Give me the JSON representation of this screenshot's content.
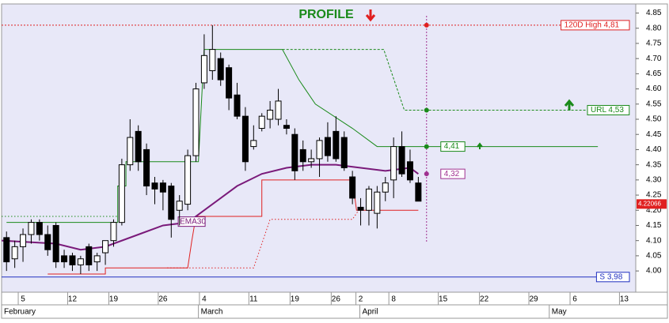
{
  "chart_data": {
    "type": "candlestick",
    "title": "PROFILE",
    "xlim": [
      -2.6,
      74.4
    ],
    "ylim": [
      3.93,
      4.88
    ],
    "yticks": [
      {
        "value": 4.0,
        "label": "4.00"
      },
      {
        "value": 4.05,
        "label": "4.05"
      },
      {
        "value": 4.1,
        "label": "4.10"
      },
      {
        "value": 4.15,
        "label": "4.15"
      },
      {
        "value": 4.2,
        "label": "4.20"
      },
      {
        "value": 4.25,
        "label": "4.25"
      },
      {
        "value": 4.3,
        "label": "4.30"
      },
      {
        "value": 4.35,
        "label": "4.35"
      },
      {
        "value": 4.4,
        "label": "4.40"
      },
      {
        "value": 4.45,
        "label": "4.45"
      },
      {
        "value": 4.5,
        "label": "4.50"
      },
      {
        "value": 4.55,
        "label": "4.55"
      },
      {
        "value": 4.6,
        "label": "4.60"
      },
      {
        "value": 4.65,
        "label": "4.65"
      },
      {
        "value": 4.7,
        "label": "4.70"
      },
      {
        "value": 4.75,
        "label": "4.75"
      },
      {
        "value": 4.8,
        "label": "4.80"
      },
      {
        "value": 4.85,
        "label": "4.85"
      }
    ],
    "xticks": [
      {
        "value": 0,
        "label": "5"
      },
      {
        "value": 6,
        "label": "12"
      },
      {
        "value": 11,
        "label": "19"
      },
      {
        "value": 17,
        "label": "26"
      },
      {
        "value": 22,
        "label": "4"
      },
      {
        "value": 28,
        "label": "11"
      },
      {
        "value": 33,
        "label": "19"
      },
      {
        "value": 38,
        "label": "26"
      },
      {
        "value": 41,
        "label": "2"
      },
      {
        "value": 45,
        "label": "8"
      },
      {
        "value": 51,
        "label": "15"
      },
      {
        "value": 56,
        "label": "22"
      },
      {
        "value": 62,
        "label": "29"
      },
      {
        "value": 67,
        "label": "6"
      },
      {
        "value": 73,
        "label": "13"
      }
    ],
    "month_ticks": [
      {
        "value": -2.6,
        "label": "February"
      },
      {
        "value": 21.3,
        "label": "March"
      },
      {
        "value": 40.9,
        "label": "April"
      },
      {
        "value": 63.9,
        "label": "May"
      }
    ],
    "candles": {
      "x": [
        -2,
        -1,
        0,
        1,
        2,
        3,
        4,
        5,
        6,
        7,
        8,
        9,
        10,
        11,
        12,
        13,
        14,
        15,
        16,
        17,
        18,
        19,
        20,
        21,
        22,
        23,
        24,
        25,
        26,
        27,
        28,
        29,
        30,
        31,
        32,
        33,
        34,
        35,
        36,
        37,
        38,
        39,
        40,
        41,
        42,
        43,
        44,
        45,
        46,
        47,
        48
      ],
      "open": [
        4.11,
        4.04,
        4.08,
        4.12,
        4.16,
        4.12,
        4.15,
        4.05,
        4.05,
        4.02,
        4.08,
        4.03,
        4.06,
        4.1,
        4.16,
        4.35,
        4.46,
        4.4,
        4.29,
        4.29,
        4.28,
        4.2,
        4.22,
        4.38,
        4.62,
        4.66,
        4.7,
        4.67,
        4.58,
        4.51,
        4.41,
        4.47,
        4.5,
        4.5,
        4.48,
        4.45,
        4.4,
        4.36,
        4.37,
        4.44,
        4.46,
        4.44,
        4.31,
        4.21,
        4.2,
        4.19,
        4.26,
        4.3,
        4.41,
        4.36,
        4.29
      ],
      "high": [
        4.13,
        4.1,
        4.14,
        4.17,
        4.17,
        4.15,
        4.16,
        4.07,
        4.06,
        4.05,
        4.09,
        4.06,
        4.1,
        4.17,
        4.37,
        4.5,
        4.48,
        4.42,
        4.31,
        4.3,
        4.29,
        4.25,
        4.4,
        4.62,
        4.78,
        4.81,
        4.72,
        4.68,
        4.62,
        4.54,
        4.48,
        4.52,
        4.56,
        4.6,
        4.5,
        4.47,
        4.43,
        4.4,
        4.44,
        4.49,
        4.51,
        4.46,
        4.33,
        4.24,
        4.28,
        4.28,
        4.31,
        4.44,
        4.46,
        4.4,
        4.31
      ],
      "low": [
        4.0,
        4.01,
        4.03,
        4.09,
        4.1,
        4.05,
        4.01,
        4.01,
        4.0,
        3.99,
        4.0,
        4.0,
        4.02,
        4.08,
        4.15,
        4.33,
        4.33,
        4.25,
        4.22,
        4.2,
        4.11,
        4.15,
        4.2,
        4.36,
        4.6,
        4.63,
        4.61,
        4.53,
        4.5,
        4.33,
        4.4,
        4.46,
        4.47,
        4.48,
        4.45,
        4.3,
        4.33,
        4.34,
        4.31,
        4.36,
        4.36,
        4.33,
        4.22,
        4.15,
        4.15,
        4.14,
        4.23,
        4.24,
        4.31,
        4.29,
        4.23
      ],
      "close": [
        4.03,
        4.08,
        4.12,
        4.16,
        4.12,
        4.07,
        4.03,
        4.03,
        4.02,
        4.04,
        4.02,
        4.05,
        4.1,
        4.16,
        4.35,
        4.44,
        4.36,
        4.28,
        4.27,
        4.26,
        4.17,
        4.23,
        4.38,
        4.6,
        4.71,
        4.73,
        4.63,
        4.57,
        4.51,
        4.36,
        4.43,
        4.51,
        4.53,
        4.56,
        4.47,
        4.33,
        4.36,
        4.37,
        4.43,
        4.38,
        4.37,
        4.34,
        4.24,
        4.2,
        4.27,
        4.26,
        4.29,
        4.41,
        4.32,
        4.3,
        4.23
      ]
    },
    "series": [
      {
        "color": "#1a8a1a",
        "style": "solid",
        "x": [
          -2,
          11.5,
          11.5,
          12.5,
          12.5,
          21.3,
          22,
          22,
          31.5,
          33.5,
          35.5,
          40,
          43,
          45,
          48,
          69.8
        ],
        "values": [
          4.16,
          4.16,
          4.28,
          4.28,
          4.36,
          4.36,
          4.73,
          4.73,
          4.73,
          4.63,
          4.55,
          4.47,
          4.41,
          4.41,
          4.41,
          4.41
        ]
      },
      {
        "color": "#1a8a1a",
        "style": "dotted",
        "x": [
          -2.6,
          11.5
        ],
        "values": [
          4.18,
          4.18
        ]
      },
      {
        "color": "#1a8a1a",
        "style": "dashed",
        "x": [
          31.5,
          43.8,
          46.3,
          69.8
        ],
        "values": [
          4.73,
          4.73,
          4.53,
          4.53
        ]
      },
      {
        "color": "#e02020",
        "style": "solid",
        "x": [
          3,
          10,
          10,
          20,
          20.5,
          21,
          29,
          29,
          40,
          40.5,
          48
        ],
        "values": [
          3.99,
          3.99,
          4.01,
          4.01,
          4.1,
          4.18,
          4.18,
          4.3,
          4.3,
          4.2,
          4.2
        ]
      },
      {
        "color": "#e02020",
        "style": "dotted",
        "x": [
          17.5,
          28,
          30,
          40,
          41
        ],
        "values": [
          4.01,
          4.01,
          4.17,
          4.17,
          4.21
        ]
      },
      {
        "name": "EMA30",
        "color": "#7a1a7a",
        "style": "solid",
        "x": [
          -2.6,
          4,
          7,
          10,
          14,
          17,
          20,
          23,
          26,
          29,
          32,
          35,
          38,
          41,
          44,
          47,
          48
        ],
        "values": [
          4.1,
          4.09,
          4.07,
          4.08,
          4.12,
          4.15,
          4.16,
          4.22,
          4.28,
          4.32,
          4.34,
          4.35,
          4.35,
          4.34,
          4.33,
          4.34,
          4.32
        ]
      }
    ],
    "levels": [
      {
        "label": "120D High 4,81",
        "value": 4.81,
        "color": "#e02020"
      },
      {
        "label": "S 3,98",
        "value": 3.98,
        "color": "#2030c0"
      }
    ],
    "cursor_x": 49,
    "markers": [
      {
        "label": "URL 4,53",
        "value": 4.53,
        "color": "#1a8a1a"
      },
      {
        "label": "4,41",
        "value": 4.41,
        "color": "#1a8a1a"
      },
      {
        "label": "4,32",
        "value": 4.32,
        "color": "#a03090"
      }
    ],
    "last_price": 4.22066
  }
}
